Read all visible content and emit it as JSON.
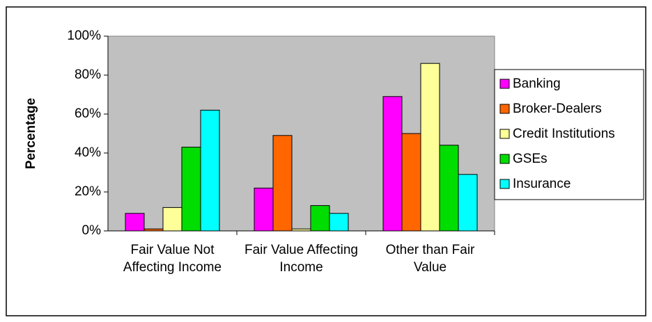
{
  "chart_data": {
    "type": "bar",
    "y_label": "Percentage",
    "categories": [
      "Fair Value Not Affecting Income",
      "Fair Value Affecting Income",
      "Other than Fair Value"
    ],
    "series": [
      {
        "name": "Banking",
        "color": "#ff00ff",
        "values": [
          9,
          22,
          69
        ]
      },
      {
        "name": "Broker-Dealers",
        "color": "#ff6600",
        "values": [
          1,
          49,
          50
        ]
      },
      {
        "name": "Credit Institutions",
        "color": "#ffff99",
        "values": [
          12,
          1,
          86
        ]
      },
      {
        "name": "GSEs",
        "color": "#00dd00",
        "values": [
          43,
          13,
          44
        ]
      },
      {
        "name": "Insurance",
        "color": "#00ffff",
        "values": [
          62,
          9,
          29
        ]
      }
    ],
    "ylim": [
      0,
      100
    ],
    "yticks": [
      {
        "value": 0,
        "label": "0%"
      },
      {
        "value": 20,
        "label": "20%"
      },
      {
        "value": 40,
        "label": "40%"
      },
      {
        "value": 60,
        "label": "60%"
      },
      {
        "value": 80,
        "label": "80%"
      },
      {
        "value": 100,
        "label": "100%"
      }
    ],
    "legend": "right"
  }
}
